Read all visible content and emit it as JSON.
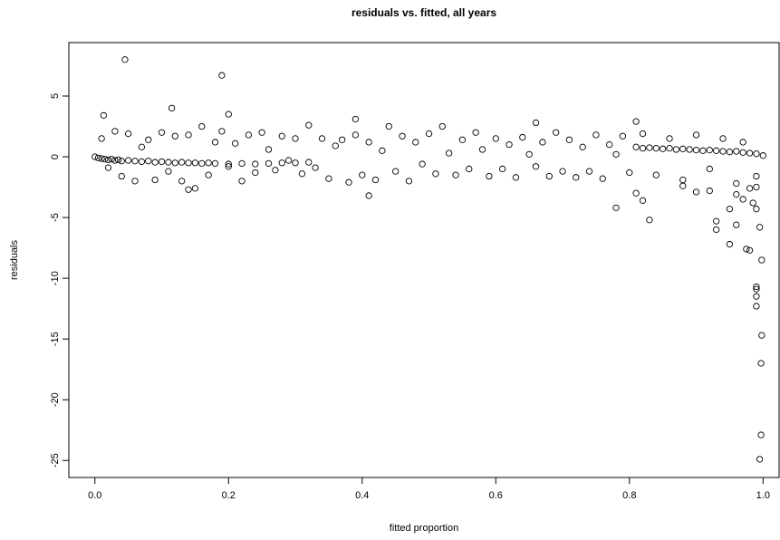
{
  "chart_data": {
    "type": "scatter",
    "title": "residuals vs. fitted, all years",
    "x_label": "fitted proportion",
    "y_label": "residuals",
    "color": "#000000",
    "grid": false,
    "xlim": [
      -0.039,
      1.024
    ],
    "ylim": [
      -26.4,
      9.4
    ],
    "xticks": [
      {
        "value": 0,
        "label": "0.0"
      },
      0.2,
      0.4,
      0.6,
      0.8,
      {
        "value": 1,
        "label": "1.0"
      }
    ],
    "yticks": [
      5,
      0,
      -5,
      -10,
      -15,
      -20,
      -25
    ],
    "series": [
      {
        "name": "residuals",
        "x": [
          0.0,
          0.005,
          0.01,
          0.015,
          0.02,
          0.025,
          0.03,
          0.035,
          0.04,
          0.05,
          0.06,
          0.07,
          0.08,
          0.09,
          0.1,
          0.11,
          0.12,
          0.13,
          0.14,
          0.15,
          0.16,
          0.17,
          0.18,
          0.2,
          0.22,
          0.24,
          0.26,
          0.28,
          0.3,
          0.32,
          0.01,
          0.02,
          0.03,
          0.04,
          0.05,
          0.06,
          0.07,
          0.08,
          0.09,
          0.1,
          0.11,
          0.12,
          0.13,
          0.14,
          0.15,
          0.16,
          0.17,
          0.18,
          0.19,
          0.2,
          0.21,
          0.22,
          0.23,
          0.24,
          0.25,
          0.26,
          0.27,
          0.28,
          0.29,
          0.3,
          0.31,
          0.32,
          0.33,
          0.34,
          0.35,
          0.36,
          0.37,
          0.38,
          0.39,
          0.4,
          0.41,
          0.42,
          0.43,
          0.44,
          0.45,
          0.46,
          0.47,
          0.48,
          0.49,
          0.5,
          0.51,
          0.52,
          0.53,
          0.54,
          0.55,
          0.56,
          0.57,
          0.58,
          0.59,
          0.6,
          0.61,
          0.62,
          0.63,
          0.64,
          0.65,
          0.66,
          0.67,
          0.68,
          0.69,
          0.7,
          0.71,
          0.72,
          0.73,
          0.74,
          0.75,
          0.76,
          0.77,
          0.78,
          0.79,
          0.8,
          0.81,
          0.82,
          0.83,
          0.84,
          0.85,
          0.86,
          0.87,
          0.88,
          0.89,
          0.9,
          0.91,
          0.92,
          0.93,
          0.94,
          0.95,
          0.96,
          0.97,
          0.98,
          0.99,
          1.0,
          0.82,
          0.84,
          0.86,
          0.88,
          0.9,
          0.92,
          0.94,
          0.96,
          0.97,
          0.98,
          0.045,
          0.19,
          0.115,
          0.2,
          0.013,
          0.39,
          0.81,
          0.66,
          0.41,
          0.14,
          0.995,
          0.997,
          0.997,
          0.998,
          0.99,
          0.99,
          0.99,
          0.99,
          0.998,
          0.975,
          0.98,
          0.95,
          0.96,
          0.93,
          0.93,
          0.995,
          0.83,
          0.78,
          0.99,
          0.95,
          0.97,
          0.81,
          0.82,
          0.9,
          0.985,
          0.99,
          0.96,
          0.88,
          0.92,
          0.99
        ],
        "values": [
          0.0,
          -0.1,
          -0.15,
          -0.2,
          -0.25,
          -0.2,
          -0.3,
          -0.25,
          -0.35,
          -0.3,
          -0.35,
          -0.4,
          -0.35,
          -0.45,
          -0.4,
          -0.45,
          -0.5,
          -0.45,
          -0.5,
          -0.5,
          -0.55,
          -0.5,
          -0.55,
          -0.6,
          -0.55,
          -0.6,
          -0.55,
          -0.5,
          -0.5,
          -0.45,
          1.5,
          -0.9,
          2.1,
          -1.6,
          1.9,
          -2.0,
          0.8,
          1.4,
          -1.9,
          2.0,
          -1.2,
          1.7,
          -2.0,
          1.8,
          -2.6,
          2.5,
          -1.5,
          1.2,
          2.1,
          -0.8,
          1.1,
          -2.0,
          1.8,
          -1.3,
          2.0,
          0.6,
          -1.1,
          1.7,
          -0.3,
          1.5,
          -1.4,
          2.6,
          -0.9,
          1.5,
          -1.8,
          0.9,
          1.4,
          -2.1,
          1.8,
          -1.5,
          1.2,
          -1.9,
          0.5,
          2.5,
          -1.2,
          1.7,
          -2.0,
          1.2,
          -0.6,
          1.9,
          -1.4,
          2.5,
          0.3,
          -1.5,
          1.4,
          -1.0,
          2.0,
          0.6,
          -1.6,
          1.5,
          -1.0,
          1.0,
          -1.7,
          1.6,
          0.2,
          -0.8,
          1.2,
          -1.6,
          2.0,
          -1.2,
          1.4,
          -1.7,
          0.8,
          -1.2,
          1.8,
          -1.8,
          1.0,
          0.2,
          1.7,
          -1.3,
          0.8,
          0.7,
          0.75,
          0.7,
          0.65,
          0.7,
          0.6,
          0.65,
          0.6,
          0.55,
          0.5,
          0.55,
          0.5,
          0.45,
          0.4,
          0.45,
          0.35,
          0.3,
          0.25,
          0.1,
          1.9,
          -1.5,
          1.5,
          -2.4,
          1.8,
          -2.8,
          1.5,
          -3.1,
          1.2,
          -2.6,
          8.0,
          6.7,
          4.0,
          3.5,
          3.4,
          3.1,
          2.9,
          2.8,
          -3.2,
          -2.7,
          -24.9,
          -22.9,
          -17.0,
          -14.7,
          -12.3,
          -11.5,
          -10.9,
          -10.7,
          -8.5,
          -7.6,
          -7.7,
          -7.2,
          -5.6,
          -5.3,
          -6.0,
          -5.8,
          -5.2,
          -4.2,
          -4.3,
          -4.3,
          -3.5,
          -3.0,
          -3.6,
          -2.9,
          -3.8,
          -2.5,
          -2.2,
          -1.9,
          -1.0,
          -1.6
        ]
      }
    ]
  }
}
